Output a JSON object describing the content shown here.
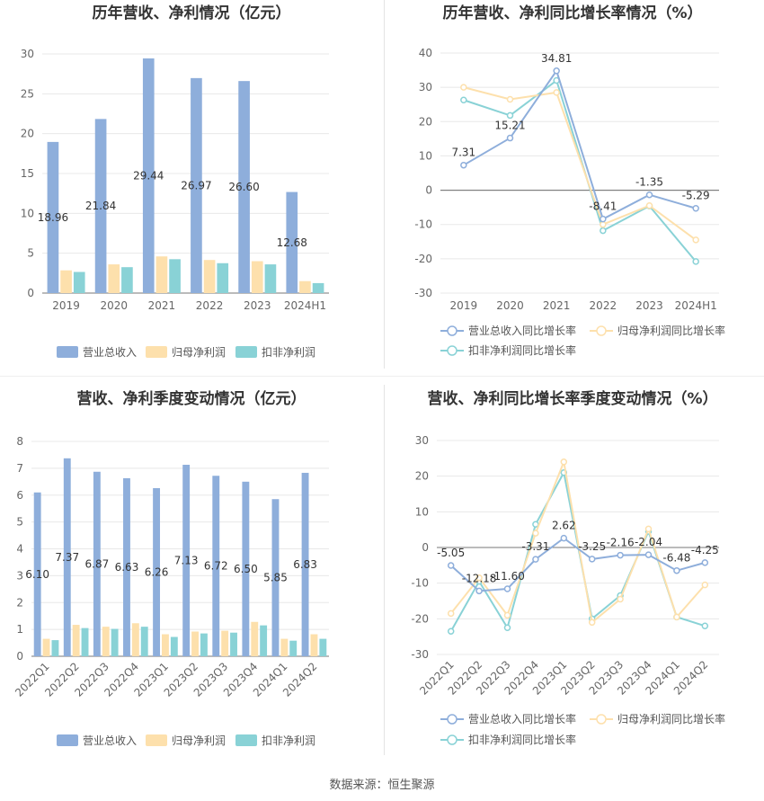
{
  "source_text": "数据来源：恒生聚源",
  "colors": {
    "revenue": "#8eaedb",
    "net_profit": "#fde0ac",
    "deducted_profit": "#89d2d6",
    "grid": "#e8e8e8",
    "axis": "#888888",
    "text": "#333333"
  },
  "chart_data": [
    {
      "type": "bar",
      "title": "历年营收、净利情况（亿元）",
      "categories": [
        "2019",
        "2020",
        "2021",
        "2022",
        "2023",
        "2024H1"
      ],
      "ylim": [
        0,
        30
      ],
      "yticks": [
        0,
        5,
        10,
        15,
        20,
        25,
        30
      ],
      "series": [
        {
          "name": "营业总收入",
          "values": [
            18.96,
            21.84,
            29.44,
            26.97,
            26.6,
            12.68
          ],
          "labels": [
            "18.96",
            "21.84",
            "29.44",
            "26.97",
            "26.60",
            "12.68"
          ]
        },
        {
          "name": "归母净利润",
          "values": [
            2.85,
            3.6,
            4.6,
            4.15,
            4.0,
            1.5
          ]
        },
        {
          "name": "扣非净利润",
          "values": [
            2.65,
            3.25,
            4.25,
            3.75,
            3.6,
            1.25
          ]
        }
      ],
      "grid": true,
      "legend": "bottom"
    },
    {
      "type": "line",
      "title": "历年营收、净利同比增长率情况（%）",
      "categories": [
        "2019",
        "2020",
        "2021",
        "2022",
        "2023",
        "2024H1"
      ],
      "ylim": [
        -30,
        40
      ],
      "yticks": [
        -30,
        -20,
        -10,
        0,
        10,
        20,
        30,
        40
      ],
      "series": [
        {
          "name": "营业总收入同比增长率",
          "values": [
            7.31,
            15.21,
            34.81,
            -8.41,
            -1.35,
            -5.29
          ],
          "labels": [
            "7.31",
            "15.21",
            "34.81",
            "-8.41",
            "-1.35",
            "-5.29"
          ]
        },
        {
          "name": "归母净利润同比增长率",
          "values": [
            30.0,
            26.5,
            28.5,
            -10.0,
            -4.5,
            -14.5
          ]
        },
        {
          "name": "扣非净利润同比增长率",
          "values": [
            26.3,
            21.8,
            32.0,
            -11.8,
            -4.6,
            -20.8
          ]
        }
      ],
      "grid": true,
      "legend": "bottom"
    },
    {
      "type": "bar",
      "title": "营收、净利季度变动情况（亿元）",
      "categories": [
        "2022Q1",
        "2022Q2",
        "2022Q3",
        "2022Q4",
        "2023Q1",
        "2023Q2",
        "2023Q3",
        "2023Q4",
        "2024Q1",
        "2024Q2"
      ],
      "ylim": [
        0,
        8
      ],
      "yticks": [
        0,
        1,
        2,
        3,
        4,
        5,
        6,
        7,
        8
      ],
      "series": [
        {
          "name": "营业总收入",
          "values": [
            6.1,
            7.37,
            6.87,
            6.63,
            6.26,
            7.13,
            6.72,
            6.5,
            5.85,
            6.83
          ],
          "labels": [
            "6.10",
            "7.37",
            "6.87",
            "6.63",
            "6.26",
            "7.13",
            "6.72",
            "6.50",
            "5.85",
            "6.83"
          ]
        },
        {
          "name": "归母净利润",
          "values": [
            0.65,
            1.17,
            1.1,
            1.23,
            0.82,
            0.92,
            0.95,
            1.28,
            0.65,
            0.82
          ]
        },
        {
          "name": "扣非净利润",
          "values": [
            0.6,
            1.05,
            1.02,
            1.1,
            0.72,
            0.85,
            0.88,
            1.15,
            0.58,
            0.65
          ]
        }
      ],
      "grid": true,
      "legend": "bottom"
    },
    {
      "type": "line",
      "title": "营收、净利同比增长率季度变动情况（%）",
      "categories": [
        "2022Q1",
        "2022Q2",
        "2022Q3",
        "2022Q4",
        "2023Q1",
        "2023Q2",
        "2023Q3",
        "2023Q4",
        "2024Q1",
        "2024Q2"
      ],
      "ylim": [
        -30,
        30
      ],
      "yticks": [
        -30,
        -20,
        -10,
        0,
        10,
        20,
        30
      ],
      "series": [
        {
          "name": "营业总收入同比增长率",
          "values": [
            -5.05,
            -12.18,
            -11.6,
            -3.31,
            2.62,
            -3.25,
            -2.16,
            -2.04,
            -6.48,
            -4.25
          ],
          "labels": [
            "-5.05",
            "-12.18",
            "-11.60",
            "-3.31",
            "2.62",
            "-3.25",
            "-2.16",
            "-2.04",
            "-6.48",
            "-4.25"
          ]
        },
        {
          "name": "归母净利润同比增长率",
          "values": [
            -18.5,
            -8.5,
            -19.0,
            4.0,
            24.0,
            -21.0,
            -14.5,
            5.2,
            -19.5,
            -10.5
          ]
        },
        {
          "name": "扣非净利润同比增长率",
          "values": [
            -23.5,
            -9.5,
            -22.5,
            6.5,
            21.0,
            -20.0,
            -13.5,
            4.5,
            -19.5,
            -22.0
          ]
        }
      ],
      "grid": true,
      "legend": "bottom"
    }
  ]
}
